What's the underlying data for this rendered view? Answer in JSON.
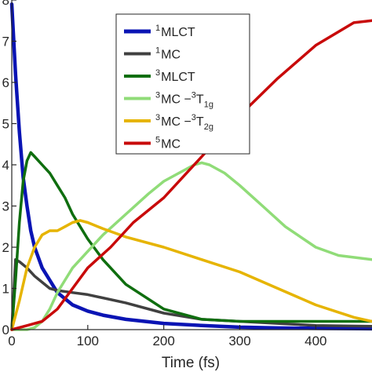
{
  "chart_data": {
    "type": "line",
    "xlabel": "Time (fs)",
    "ylabel": "",
    "xlim": [
      0,
      474
    ],
    "ylim": [
      0,
      0.8
    ],
    "x_ticks": [
      0,
      100,
      200,
      300,
      400
    ],
    "y_ticks": [
      0,
      0.1,
      0.2,
      0.3,
      0.4,
      0.5,
      0.6,
      0.7,
      0.8
    ],
    "y_tick_labels": [
      "0",
      "1",
      "2",
      "3",
      "4",
      "5",
      "6",
      "7",
      "8"
    ],
    "grid": false,
    "legend_position": "top-center",
    "series": [
      {
        "name": "MLCT",
        "superscript": "1",
        "color": "#0a14b4",
        "x": [
          0,
          5,
          10,
          15,
          20,
          25,
          30,
          40,
          50,
          60,
          70,
          80,
          100,
          120,
          150,
          200,
          250,
          300,
          350,
          400,
          474
        ],
        "values": [
          0.79,
          0.62,
          0.48,
          0.37,
          0.3,
          0.24,
          0.2,
          0.15,
          0.12,
          0.09,
          0.075,
          0.06,
          0.045,
          0.035,
          0.025,
          0.015,
          0.01,
          0.006,
          0.004,
          0.003,
          0.002
        ]
      },
      {
        "name": "MC",
        "superscript": "1",
        "color": "#404040",
        "x": [
          0,
          5,
          10,
          20,
          30,
          40,
          50,
          60,
          80,
          100,
          150,
          200,
          250,
          300,
          350,
          400,
          474
        ],
        "values": [
          0.0,
          0.17,
          0.165,
          0.15,
          0.13,
          0.115,
          0.1,
          0.095,
          0.09,
          0.085,
          0.065,
          0.04,
          0.025,
          0.02,
          0.015,
          0.01,
          0.008
        ]
      },
      {
        "name": "MLCT",
        "superscript": "3",
        "color": "#0f6e0f",
        "x": [
          0,
          5,
          10,
          15,
          20,
          25,
          30,
          40,
          50,
          60,
          70,
          80,
          90,
          100,
          120,
          150,
          200,
          250,
          300,
          350,
          400,
          474
        ],
        "values": [
          0.0,
          0.12,
          0.26,
          0.36,
          0.41,
          0.43,
          0.42,
          0.4,
          0.38,
          0.35,
          0.32,
          0.28,
          0.25,
          0.22,
          0.17,
          0.11,
          0.05,
          0.025,
          0.02,
          0.02,
          0.02,
          0.02
        ]
      },
      {
        "name": "MC −",
        "superscript": "3",
        "state_superscript": "3",
        "state": "T",
        "state_subscript": "1g",
        "color": "#90dc78",
        "x": [
          0,
          20,
          30,
          40,
          50,
          60,
          70,
          80,
          100,
          120,
          150,
          180,
          200,
          220,
          240,
          250,
          260,
          280,
          300,
          330,
          360,
          400,
          430,
          474
        ],
        "values": [
          0.0,
          0.0,
          0.005,
          0.02,
          0.05,
          0.09,
          0.12,
          0.15,
          0.19,
          0.23,
          0.28,
          0.33,
          0.36,
          0.38,
          0.4,
          0.405,
          0.4,
          0.38,
          0.35,
          0.3,
          0.25,
          0.2,
          0.18,
          0.17
        ]
      },
      {
        "name": "MC −",
        "superscript": "3",
        "state_superscript": "3",
        "state": "T",
        "state_subscript": "2g",
        "color": "#e6b400",
        "x": [
          0,
          10,
          20,
          30,
          40,
          50,
          60,
          70,
          80,
          90,
          100,
          120,
          150,
          200,
          250,
          300,
          350,
          400,
          450,
          474
        ],
        "values": [
          0.0,
          0.07,
          0.15,
          0.2,
          0.23,
          0.24,
          0.24,
          0.25,
          0.26,
          0.265,
          0.26,
          0.245,
          0.225,
          0.2,
          0.17,
          0.14,
          0.1,
          0.06,
          0.03,
          0.02
        ]
      },
      {
        "name": "MC",
        "superscript": "5",
        "color": "#c80a0a",
        "x": [
          0,
          20,
          40,
          60,
          80,
          100,
          130,
          160,
          200,
          250,
          300,
          350,
          400,
          450,
          474
        ],
        "values": [
          0.0,
          0.01,
          0.02,
          0.05,
          0.1,
          0.15,
          0.2,
          0.26,
          0.32,
          0.42,
          0.52,
          0.61,
          0.69,
          0.745,
          0.75
        ]
      }
    ]
  }
}
